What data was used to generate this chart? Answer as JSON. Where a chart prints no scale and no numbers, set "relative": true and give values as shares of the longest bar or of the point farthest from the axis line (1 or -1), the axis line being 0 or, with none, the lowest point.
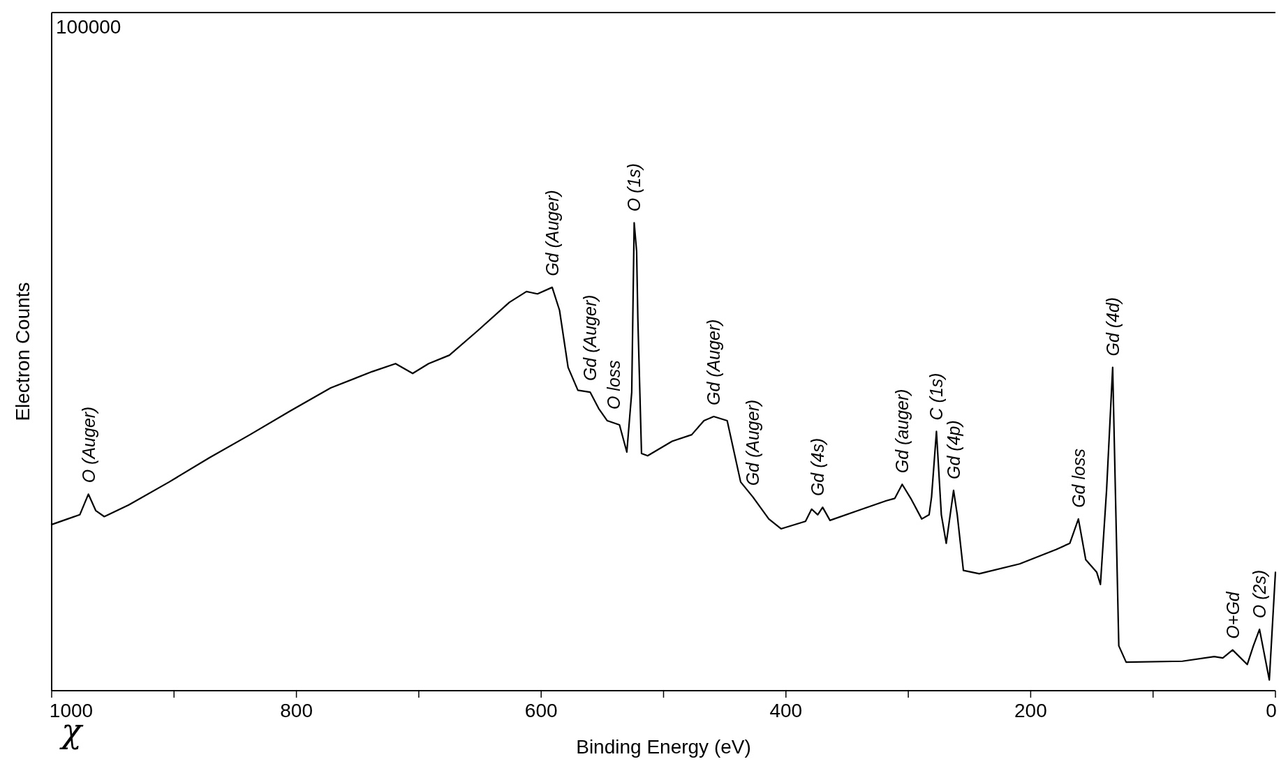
{
  "chart_data": {
    "type": "line",
    "relative": true,
    "xlabel": "Binding Energy  (eV)",
    "ylabel": "Electron Counts",
    "xlim": [
      1000,
      0
    ],
    "xticks": [
      1000,
      {
        "value": 900,
        "label": null
      },
      800,
      {
        "value": 700,
        "label": null
      },
      600,
      {
        "value": 500,
        "label": null
      },
      400,
      {
        "value": 300,
        "label": null
      },
      200,
      {
        "value": 100,
        "label": null
      },
      0
    ],
    "series": [
      {
        "color": "#000000",
        "x": [
          1000,
          987,
          977,
          970,
          964,
          957,
          937,
          904,
          871,
          838,
          805,
          772,
          738,
          719,
          705,
          692,
          675,
          652,
          626,
          612,
          603,
          591,
          585,
          578,
          570,
          560,
          553,
          546,
          536,
          530,
          526,
          524,
          522,
          521,
          518,
          513,
          493,
          477,
          467,
          459,
          448,
          437,
          427,
          414,
          404,
          384,
          379,
          374,
          370,
          364,
          341,
          318,
          311,
          305,
          298,
          289,
          283,
          281,
          277,
          273,
          269,
          263,
          260,
          255,
          242,
          209,
          179,
          168,
          161,
          155,
          146,
          143,
          138,
          133,
          128,
          122,
          76,
          50,
          43,
          35,
          23,
          18,
          13,
          5,
          0
        ],
        "values": [
          0.355,
          0.367,
          0.376,
          0.42,
          0.385,
          0.372,
          0.397,
          0.446,
          0.498,
          0.547,
          0.598,
          0.647,
          0.682,
          0.699,
          0.678,
          0.699,
          0.717,
          0.769,
          0.83,
          0.853,
          0.848,
          0.862,
          0.813,
          0.691,
          0.642,
          0.638,
          0.603,
          0.577,
          0.568,
          0.51,
          0.638,
          1.0,
          0.939,
          0.795,
          0.507,
          0.502,
          0.533,
          0.547,
          0.577,
          0.586,
          0.577,
          0.446,
          0.414,
          0.367,
          0.346,
          0.362,
          0.388,
          0.376,
          0.392,
          0.364,
          0.385,
          0.406,
          0.411,
          0.441,
          0.411,
          0.367,
          0.376,
          0.414,
          0.554,
          0.376,
          0.315,
          0.428,
          0.376,
          0.257,
          0.25,
          0.271,
          0.302,
          0.315,
          0.367,
          0.28,
          0.253,
          0.227,
          0.428,
          0.691,
          0.096,
          0.061,
          0.063,
          0.073,
          0.07,
          0.087,
          0.056,
          0.096,
          0.131,
          0.023,
          0.253
        ]
      }
    ],
    "annotations": [
      "100000",
      "χ",
      {
        "text": "O (Auger)",
        "x": 970,
        "y": 0.42
      },
      {
        "text": "Gd  (Auger)",
        "x": 591,
        "y": 0.862
      },
      {
        "text": "Gd  (Auger)",
        "x": 560,
        "y": 0.638
      },
      {
        "text": "O loss",
        "x": 541,
        "y": 0.577
      },
      {
        "text": "O (1s)",
        "x": 524,
        "y": 1.0
      },
      {
        "text": "Gd  (Auger)",
        "x": 459,
        "y": 0.586
      },
      {
        "text": "Gd  (Auger)",
        "x": 427,
        "y": 0.414
      },
      {
        "text": "Gd (4s)",
        "x": 374,
        "y": 0.392
      },
      {
        "text": "Gd  (auger)",
        "x": 305,
        "y": 0.441
      },
      {
        "text": "C (1s)",
        "x": 277,
        "y": 0.554
      },
      {
        "text": "Gd  (4p)",
        "x": 263,
        "y": 0.428
      },
      {
        "text": "Gd  loss",
        "x": 161,
        "y": 0.367
      },
      {
        "text": "Gd (4d)",
        "x": 133,
        "y": 0.691
      },
      {
        "text": "O+Gd",
        "x": 35,
        "y": 0.087
      },
      {
        "text": "O (2s)",
        "x": 13,
        "y": 0.131
      }
    ]
  }
}
